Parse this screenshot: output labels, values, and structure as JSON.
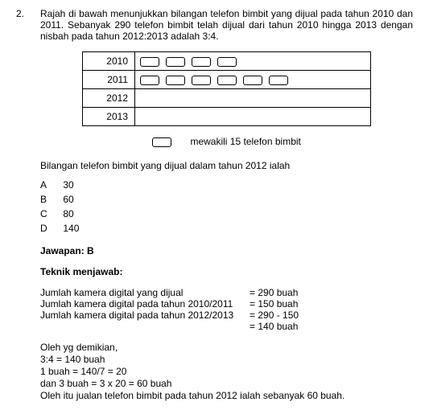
{
  "question_number": "2.",
  "question_text": "Rajah di bawah menunjukkan bilangan telefon bimbit yang dijual pada tahun 2010 dan 2011. Sebanyak 290 telefon bimbit telah dijual dari tahun 2010 hingga 2013 dengan nisbah pada tahun 2012:2013 adalah 3:4.",
  "pictograph": {
    "rows": [
      {
        "year": "2010",
        "count": 4
      },
      {
        "year": "2011",
        "count": 6
      },
      {
        "year": "2012",
        "count": 0
      },
      {
        "year": "2013",
        "count": 0
      }
    ]
  },
  "legend": "mewakili 15 telefon bimbit",
  "stem": "Bilangan telefon bimbit yang dijual dalam tahun 2012 ialah",
  "options": [
    {
      "letter": "A",
      "value": "30"
    },
    {
      "letter": "B",
      "value": "60"
    },
    {
      "letter": "C",
      "value": "80"
    },
    {
      "letter": "D",
      "value": "140"
    }
  ],
  "answer_label": "Jawapan: B",
  "teknik_label": "Teknik menjawab:",
  "calc_rows": [
    {
      "left": "Jumlah kamera digital yang dijual",
      "right": "= 290 buah"
    },
    {
      "left": "Jumlah kamera digital pada tahun 2010/2011",
      "right": "= 150 buah"
    },
    {
      "left": "Jumlah kamera digital pada tahun 2012/2013",
      "right": "= 290 - 150"
    },
    {
      "left": "",
      "right": "= 140 buah"
    }
  ],
  "working": [
    "Oleh yg demikian,",
    "3:4 = 140 buah",
    "1 buah = 140/7 = 20",
    "dan 3 buah =  3 x 20 = 60 buah",
    "Oleh itu jualan telefon bimbit pada tahun 2012 ialah sebanyak 60 buah."
  ]
}
